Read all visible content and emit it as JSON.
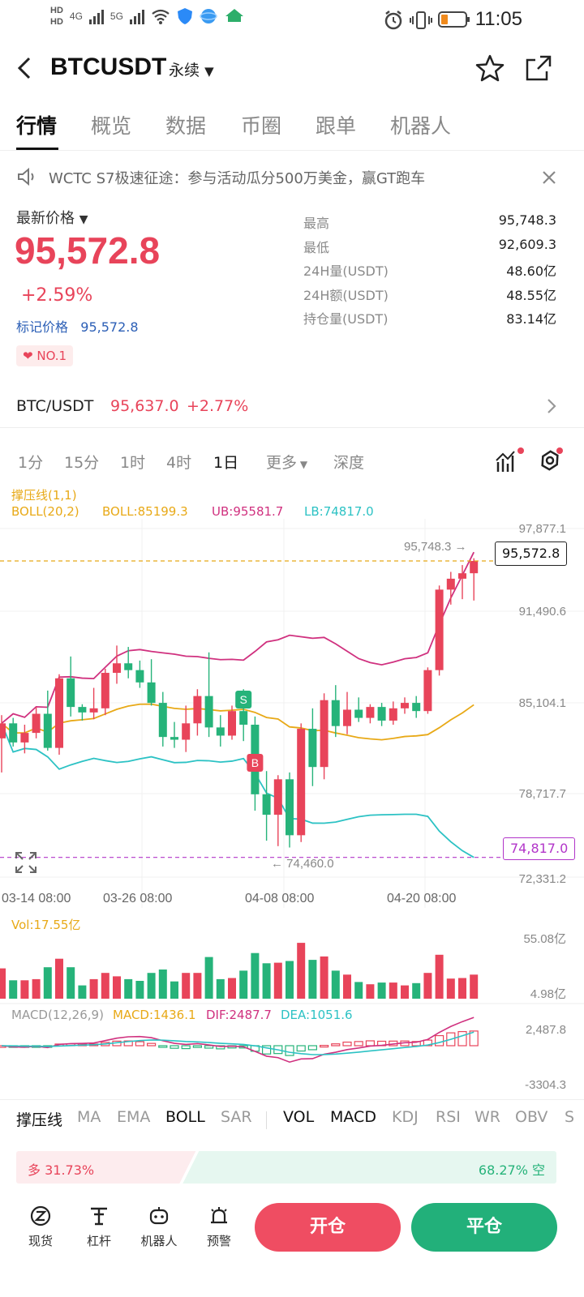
{
  "status": {
    "time": "11:05",
    "hd1": "HD",
    "hd2": "HD",
    "net1": "4G",
    "net2": "5G"
  },
  "header": {
    "title": "BTCUSDT",
    "subtitle": "永续"
  },
  "tabs": [
    "行情",
    "概览",
    "数据",
    "币圈",
    "跟单",
    "机器人"
  ],
  "notice": "WCTC S7极速征途：参与活动瓜分500万美金，赢GT跑车",
  "ticker": {
    "price_label": "最新价格",
    "price": "95,572.8",
    "change": "+2.59%",
    "mark_label": "标记价格",
    "mark_value": "95,572.8",
    "badge": "NO.1"
  },
  "stats": [
    {
      "k": "最高",
      "v": "95,748.3"
    },
    {
      "k": "最低",
      "v": "92,609.3"
    },
    {
      "k": "24H量(USDT)",
      "v": "48.60亿"
    },
    {
      "k": "24H额(USDT)",
      "v": "48.55亿"
    },
    {
      "k": "持仓量(USDT)",
      "v": "83.14亿"
    }
  ],
  "spot": {
    "pair": "BTC/USDT",
    "price": "95,637.0",
    "change": "+2.77%"
  },
  "intervals": [
    "1分",
    "15分",
    "1时",
    "4时",
    "1日",
    "更多",
    "深度"
  ],
  "legend": {
    "line1": "撑压线(1,1)",
    "boll": "BOLL(20,2)",
    "mid": "BOLL:85199.3",
    "ub": "UB:95581.7",
    "lb": "LB:74817.0",
    "vol": "Vol:17.55亿",
    "macd_name": "MACD(12,26,9)",
    "macd": "MACD:1436.1",
    "dif": "DIF:2487.7",
    "dea": "DEA:1051.6"
  },
  "axis": {
    "y": [
      "97,877.1",
      "91,490.6",
      "85,104.1",
      "78,717.7",
      "72,331.2"
    ],
    "vol": [
      "55.08亿",
      "4.98亿"
    ],
    "macd": [
      "2,487.8",
      "-3304.3"
    ],
    "dates": [
      "03-14 08:00",
      "03-26 08:00",
      "04-08 08:00",
      "04-20 08:00"
    ],
    "high_note": "95,748.3 →",
    "low_note": "← 74,460.0",
    "current_box": "95,572.8",
    "lb_box": "74,817.0",
    "buy_mark": "B",
    "sell_mark": "S"
  },
  "indicators": [
    "撑压线",
    "MA",
    "EMA",
    "BOLL",
    "SAR",
    "VOL",
    "MACD",
    "KDJ",
    "RSI",
    "WR",
    "OBV",
    "S"
  ],
  "ratio": {
    "long": "多 31.73%",
    "short": "68.27% 空",
    "long_fraction": 0.3173
  },
  "bottom": {
    "items": [
      "现货",
      "杠杆",
      "机器人",
      "预警"
    ],
    "open": "开仓",
    "close": "平仓"
  },
  "colors": {
    "up": "#e8445a",
    "down": "#26b37a",
    "boll_mid": "#e8a917",
    "ub": "#d0317f",
    "lb": "#2cc2c4",
    "long_bg": "#fdecee",
    "short_bg": "#e6f7f0"
  },
  "chart_data": {
    "type": "candlestick",
    "y_range": [
      72331.2,
      97877.1
    ],
    "candles": [
      [
        82500,
        84200,
        80000,
        83600
      ],
      [
        83600,
        84000,
        81900,
        82200
      ],
      [
        82200,
        83500,
        81400,
        82900
      ],
      [
        82900,
        84800,
        82500,
        84300
      ],
      [
        84300,
        86000,
        81600,
        81800
      ],
      [
        81800,
        87200,
        81300,
        86900
      ],
      [
        86900,
        88500,
        84100,
        84800
      ],
      [
        84800,
        85000,
        83800,
        84400
      ],
      [
        84400,
        86200,
        83900,
        84700
      ],
      [
        84700,
        87600,
        84200,
        87300
      ],
      [
        87300,
        89300,
        86500,
        88000
      ],
      [
        88000,
        89200,
        86900,
        87500
      ],
      [
        87500,
        88200,
        86200,
        86600
      ],
      [
        86600,
        88300,
        84900,
        85100
      ],
      [
        85100,
        85900,
        81900,
        82600
      ],
      [
        82600,
        83700,
        81800,
        82400
      ],
      [
        82400,
        84900,
        81500,
        83600
      ],
      [
        83600,
        86100,
        82700,
        85600
      ],
      [
        85600,
        88800,
        82600,
        83300
      ],
      [
        83300,
        84200,
        81900,
        82700
      ],
      [
        82700,
        84900,
        82400,
        84500
      ],
      [
        84500,
        86100,
        82300,
        83500
      ],
      [
        83500,
        84100,
        77200,
        78400
      ],
      [
        78400,
        80100,
        75000,
        76900
      ],
      [
        76900,
        79800,
        74600,
        79500
      ],
      [
        79500,
        80000,
        74500,
        75400
      ],
      [
        75400,
        83600,
        74900,
        83200
      ],
      [
        83200,
        84700,
        79000,
        80400
      ],
      [
        80400,
        85800,
        79500,
        85300
      ],
      [
        85300,
        86400,
        82600,
        83400
      ],
      [
        83400,
        85900,
        82800,
        84600
      ],
      [
        84600,
        85500,
        83700,
        84000
      ],
      [
        84000,
        85000,
        83600,
        84800
      ],
      [
        84800,
        85100,
        83400,
        83800
      ],
      [
        83800,
        85200,
        83500,
        84700
      ],
      [
        84700,
        85500,
        84300,
        85100
      ],
      [
        85100,
        85600,
        84000,
        84500
      ],
      [
        84500,
        87700,
        84300,
        87500
      ],
      [
        87500,
        93700,
        87100,
        93400
      ],
      [
        93400,
        94700,
        92300,
        94200
      ],
      [
        94200,
        95200,
        92700,
        94600
      ],
      [
        94600,
        95700,
        92600,
        95500
      ]
    ]
  }
}
